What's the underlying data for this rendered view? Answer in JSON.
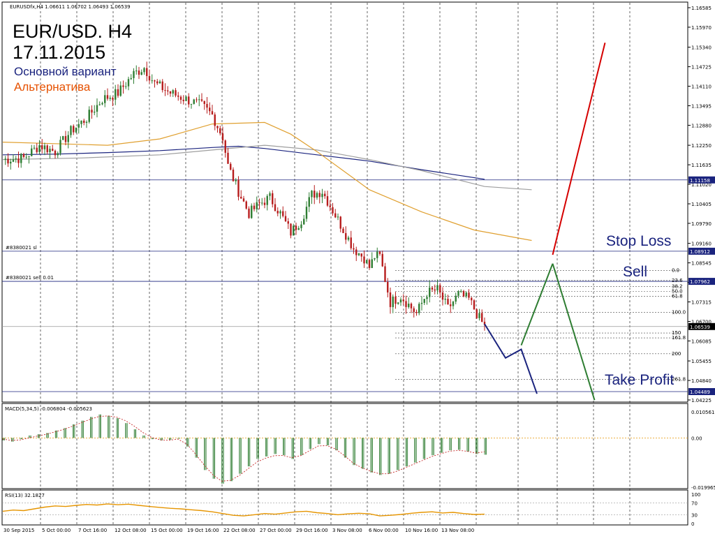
{
  "window": {
    "header": "EURUSDfx,H4  1.06611 1.06702 1.06493 1.06539",
    "title_line1": "EUR/USD. H4",
    "title_line2": "17.11.2015",
    "legend_main": "Основной вариант",
    "legend_alt": "Альтернатива",
    "legend_main_color": "#1a237e",
    "legend_alt_color": "#e65100",
    "marker_sl": "#8380021 sl",
    "marker_sell": "#8380021 sell 0.01",
    "stop_loss_text": "Stop Loss",
    "sell_text": "Sell",
    "take_profit_text": "Take Profit",
    "macd_label": "MACD(5,34,5) -0.006804 -0.005623",
    "rsi_label": "RSI(13) 32.1827"
  },
  "chart_data": [
    {
      "type": "candlestick",
      "symbol": "EURUSD",
      "timeframe": "H4",
      "ylim": [
        1.04225,
        1.16585
      ],
      "y_ticks": [
        "1.16585",
        "1.15970",
        "1.15340",
        "1.14725",
        "1.14110",
        "1.13495",
        "1.12880",
        "1.12250",
        "1.11635",
        "1.11020",
        "1.10405",
        "1.09790",
        "1.09160",
        "1.08545",
        "1.07930",
        "1.07315",
        "1.06700",
        "1.06085",
        "1.05455",
        "1.04840",
        "1.04225"
      ],
      "x_labels": [
        "30 Sep 2015",
        "5 Oct 00:00",
        "7 Oct 16:00",
        "12 Oct 08:00",
        "15 Oct 00:00",
        "19 Oct 16:00",
        "22 Oct 08:00",
        "27 Oct 00:00",
        "29 Oct 16:00",
        "3 Nov 08:00",
        "6 Nov 00:00",
        "10 Nov 16:00",
        "13 Nov 08:00"
      ],
      "price_labels": [
        {
          "text": "1.11158",
          "value": 1.11158,
          "style": "dark"
        },
        {
          "text": "1.08912",
          "value": 1.08912,
          "style": "dark"
        },
        {
          "text": "1.07962",
          "value": 1.07962,
          "style": "dark"
        },
        {
          "text": "1.06539",
          "value": 1.06539,
          "style": "black"
        },
        {
          "text": "1.04489",
          "value": 1.04489,
          "style": "dark"
        }
      ],
      "fibo_levels": [
        "0.0",
        "23.6",
        "38.2",
        "50.0",
        "61.8",
        "100.0",
        "150",
        "161.8",
        "200",
        "261.8"
      ],
      "series": [
        {
          "name": "price",
          "role": "close_path",
          "values": [
            [
              0,
              1.118
            ],
            [
              8,
              1.1185
            ],
            [
              14,
              1.1225
            ],
            [
              20,
              1.1205
            ],
            [
              26,
              1.127
            ],
            [
              32,
              1.131
            ],
            [
              38,
              1.137
            ],
            [
              44,
              1.139
            ],
            [
              50,
              1.145
            ],
            [
              54,
              1.147
            ],
            [
              58,
              1.142
            ],
            [
              64,
              1.139
            ],
            [
              70,
              1.137
            ],
            [
              76,
              1.135
            ],
            [
              80,
              1.132
            ],
            [
              84,
              1.125
            ],
            [
              86,
              1.116
            ],
            [
              90,
              1.108
            ],
            [
              94,
              1.101
            ],
            [
              98,
              1.104
            ],
            [
              102,
              1.106
            ],
            [
              106,
              1.101
            ],
            [
              110,
              1.095
            ],
            [
              114,
              1.099
            ],
            [
              118,
              1.107
            ],
            [
              122,
              1.108
            ],
            [
              126,
              1.102
            ],
            [
              130,
              1.096
            ],
            [
              134,
              1.09
            ],
            [
              138,
              1.087
            ],
            [
              140,
              1.084
            ],
            [
              142,
              1.0875
            ],
            [
              144,
              1.0875
            ],
            [
              148,
              1.073
            ],
            [
              152,
              1.075
            ],
            [
              158,
              1.0695
            ],
            [
              162,
              1.076
            ],
            [
              166,
              1.077
            ],
            [
              170,
              1.071
            ],
            [
              174,
              1.0755
            ],
            [
              178,
              1.074
            ],
            [
              182,
              1.068
            ],
            [
              184,
              1.0654
            ]
          ]
        },
        {
          "name": "ma_slow",
          "color": "#1a237e",
          "values": [
            [
              0,
              1.1195
            ],
            [
              20,
              1.1197
            ],
            [
              40,
              1.1202
            ],
            [
              60,
              1.1208
            ],
            [
              80,
              1.1218
            ],
            [
              90,
              1.1222
            ],
            [
              100,
              1.1215
            ],
            [
              120,
              1.1195
            ],
            [
              140,
              1.1175
            ],
            [
              160,
              1.1148
            ],
            [
              184,
              1.1118
            ]
          ]
        },
        {
          "name": "ma_grey",
          "color": "#9e9e9e",
          "values": [
            [
              0,
              1.118
            ],
            [
              30,
              1.1185
            ],
            [
              60,
              1.1195
            ],
            [
              80,
              1.121
            ],
            [
              100,
              1.1225
            ],
            [
              120,
              1.121
            ],
            [
              140,
              1.118
            ],
            [
              160,
              1.1145
            ],
            [
              184,
              1.1095
            ],
            [
              202,
              1.1085
            ]
          ]
        },
        {
          "name": "ma_fast",
          "color": "#e0a030",
          "values": [
            [
              0,
              1.1235
            ],
            [
              20,
              1.123
            ],
            [
              40,
              1.1225
            ],
            [
              60,
              1.1245
            ],
            [
              80,
              1.1292
            ],
            [
              100,
              1.1297
            ],
            [
              110,
              1.126
            ],
            [
              120,
              1.1205
            ],
            [
              130,
              1.1145
            ],
            [
              140,
              1.1085
            ],
            [
              160,
              1.1015
            ],
            [
              180,
              1.0958
            ],
            [
              202,
              1.0925
            ]
          ]
        },
        {
          "name": "main_forecast",
          "color": "#1a237e",
          "values": [
            [
              184,
              1.0662
            ],
            [
              192,
              1.0555
            ],
            [
              198,
              1.0582
            ],
            [
              204,
              1.0442
            ]
          ]
        },
        {
          "name": "alt_forecast_up",
          "color": "#2e7d32",
          "values": [
            [
              198,
              1.0595
            ],
            [
              210,
              1.0852
            ]
          ]
        },
        {
          "name": "alt_forecast_down",
          "color": "#2e7d32",
          "values": [
            [
              210,
              1.0852
            ],
            [
              226,
              1.0422
            ]
          ]
        },
        {
          "name": "stop_loss_breakout",
          "color": "#d50000",
          "values": [
            [
              210,
              1.088
            ],
            [
              230,
              1.1548
            ]
          ]
        }
      ],
      "levels": [
        {
          "label": "Stop Loss",
          "value": 1.08912
        },
        {
          "label": "Sell",
          "value": 1.07962
        },
        {
          "label": "Take Profit",
          "value": 1.04489
        }
      ],
      "grid": "vertical dashed"
    },
    {
      "type": "bar",
      "name": "MACD(5,34,5)",
      "values_text": [
        "-0.006804",
        "-0.005623"
      ],
      "ylim": [
        -0.01996,
        0.010561
      ],
      "y_ticks": [
        "0.010561",
        "0.00",
        "-0.019965"
      ],
      "series": [
        {
          "name": "histogram",
          "color": "#2e7d32",
          "values": [
            -0.001,
            -0.0015,
            -0.0005,
            0.001,
            0.0015,
            0.002,
            0.003,
            0.004,
            0.0055,
            0.007,
            0.0085,
            0.0095,
            0.009,
            0.008,
            0.006,
            0.0035,
            0.001,
            -0.0005,
            -0.001,
            -0.0008,
            -0.0003,
            -0.0035,
            -0.008,
            -0.013,
            -0.0165,
            -0.0185,
            -0.0175,
            -0.0145,
            -0.0115,
            -0.0085,
            -0.0075,
            -0.0065,
            -0.007,
            -0.0085,
            -0.007,
            -0.0045,
            -0.0025,
            -0.003,
            -0.005,
            -0.008,
            -0.011,
            -0.0125,
            -0.014,
            -0.015,
            -0.0145,
            -0.013,
            -0.0115,
            -0.01,
            -0.0085,
            -0.007,
            -0.006,
            -0.005,
            -0.0048,
            -0.0055,
            -0.0065,
            -0.0068
          ]
        },
        {
          "name": "signal",
          "color": "#c62828",
          "values": [
            -0.0005,
            -0.001,
            -0.0008,
            0.0,
            0.0008,
            0.0015,
            0.0025,
            0.0035,
            0.0048,
            0.0062,
            0.0076,
            0.0087,
            0.0089,
            0.0084,
            0.007,
            0.0048,
            0.0022,
            0.0002,
            -0.0008,
            -0.0009,
            -0.0005,
            -0.0025,
            -0.0065,
            -0.011,
            -0.015,
            -0.0175,
            -0.0172,
            -0.0152,
            -0.0125,
            -0.0098,
            -0.0082,
            -0.0072,
            -0.0071,
            -0.008,
            -0.0072,
            -0.0052,
            -0.0033,
            -0.0031,
            -0.0045,
            -0.0072,
            -0.0102,
            -0.0121,
            -0.0135,
            -0.0145,
            -0.0145,
            -0.0135,
            -0.012,
            -0.0105,
            -0.009,
            -0.0075,
            -0.0064,
            -0.0054,
            -0.005,
            -0.0054,
            -0.0061,
            -0.0056
          ]
        }
      ]
    },
    {
      "type": "line",
      "name": "RSI(13)",
      "value_text": "32.1827",
      "ylim": [
        0,
        100
      ],
      "y_ticks": [
        "100",
        "70",
        "30",
        "0"
      ],
      "series": [
        {
          "name": "rsi",
          "color": "#e69500",
          "values": [
            [
              0,
              42
            ],
            [
              4,
              46
            ],
            [
              8,
              44
            ],
            [
              12,
              50
            ],
            [
              16,
              56
            ],
            [
              20,
              60
            ],
            [
              24,
              58
            ],
            [
              28,
              62
            ],
            [
              32,
              65
            ],
            [
              36,
              63
            ],
            [
              40,
              67
            ],
            [
              44,
              64
            ],
            [
              48,
              66
            ],
            [
              52,
              62
            ],
            [
              56,
              58
            ],
            [
              60,
              55
            ],
            [
              64,
              52
            ],
            [
              68,
              50
            ],
            [
              72,
              47
            ],
            [
              76,
              44
            ],
            [
              80,
              40
            ],
            [
              84,
              34
            ],
            [
              88,
              28
            ],
            [
              92,
              26
            ],
            [
              96,
              30
            ],
            [
              100,
              34
            ],
            [
              104,
              32
            ],
            [
              108,
              36
            ],
            [
              112,
              40
            ],
            [
              116,
              42
            ],
            [
              120,
              37
            ],
            [
              124,
              34
            ],
            [
              128,
              30
            ],
            [
              132,
              33
            ],
            [
              136,
              35
            ],
            [
              140,
              33
            ],
            [
              144,
              26
            ],
            [
              148,
              28
            ],
            [
              152,
              31
            ],
            [
              156,
              35
            ],
            [
              160,
              38
            ],
            [
              164,
              40
            ],
            [
              168,
              36
            ],
            [
              172,
              38
            ],
            [
              176,
              34
            ],
            [
              180,
              31
            ],
            [
              184,
              32
            ]
          ]
        }
      ]
    }
  ]
}
